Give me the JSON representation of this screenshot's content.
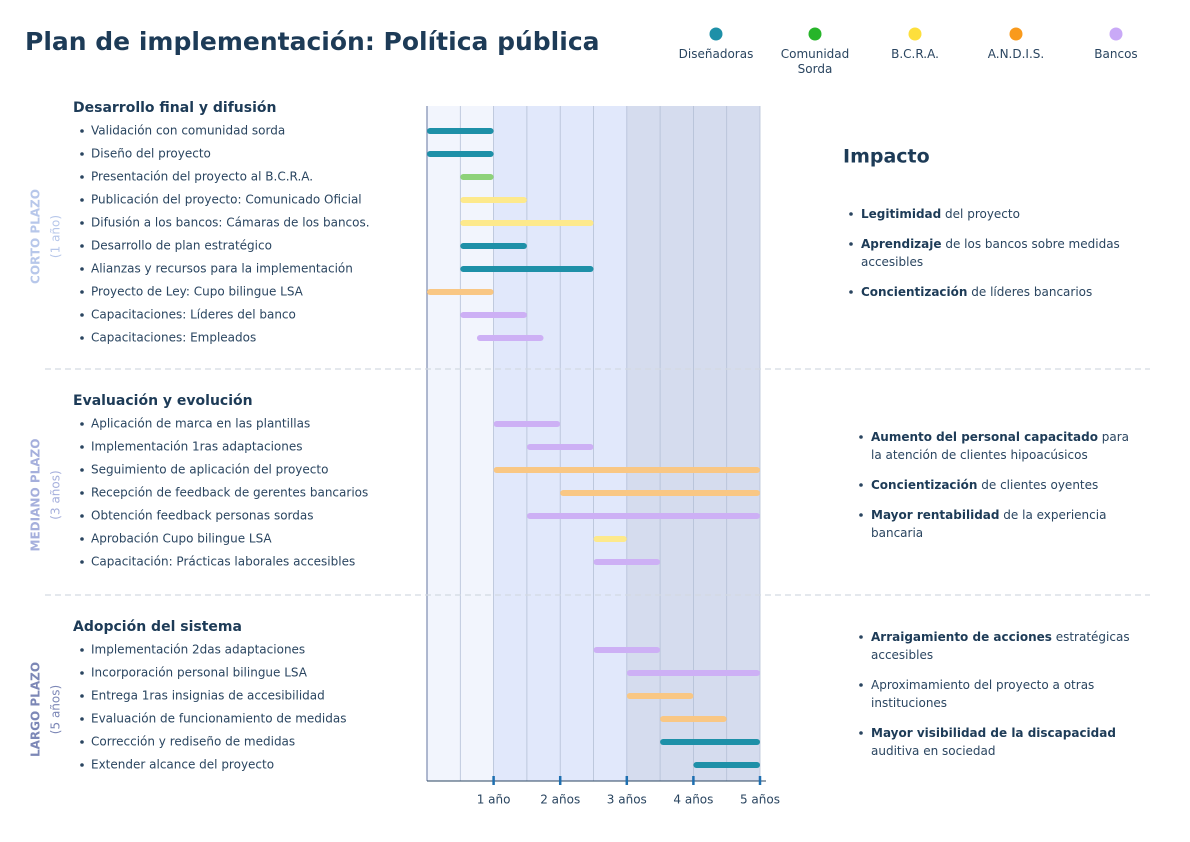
{
  "title": "Plan de implementación: Política pública",
  "impact_title": "Impacto",
  "legend": [
    {
      "name": "Diseñadoras",
      "color": "#1e90a8"
    },
    {
      "name": "Comunidad Sorda",
      "color": "#27b52a"
    },
    {
      "name": "B.C.R.A.",
      "color": "#fddf3c"
    },
    {
      "name": "A.N.D.I.S.",
      "color": "#f99a1c"
    },
    {
      "name": "Bancos",
      "color": "#c9a9f7"
    }
  ],
  "chart_data": {
    "type": "gantt",
    "xlim": [
      0,
      5
    ],
    "xticks": [
      {
        "value": 1,
        "label": "1 año"
      },
      {
        "value": 2,
        "label": "2 años"
      },
      {
        "value": 3,
        "label": "3 años"
      },
      {
        "value": 4,
        "label": "4 años"
      },
      {
        "value": 5,
        "label": "5 años"
      }
    ],
    "xgrid": [
      0.5,
      1,
      1.5,
      2,
      2.5,
      3,
      3.5,
      4,
      4.5,
      5
    ],
    "phases": [
      {
        "label": "CORTO PLAZO",
        "duration": "(1 año)",
        "end": 1,
        "color": "#b7c7ea",
        "shade": "#f2f5fd",
        "heading": "Desarrollo final y difusión",
        "tasks": [
          {
            "name": "Validación con comunidad sorda",
            "start": 0,
            "end": 1,
            "color": "#1e90a8"
          },
          {
            "name": "Diseño del proyecto",
            "start": 0,
            "end": 1,
            "color": "#1e90a8"
          },
          {
            "name": "Presentación del proyecto al B.C.R.A.",
            "start": 0.5,
            "end": 1,
            "color": "#8ed27a"
          },
          {
            "name": "Publicación del proyecto: Comunicado Oficial",
            "start": 0.5,
            "end": 1.5,
            "color": "#fde98c"
          },
          {
            "name": "Difusión a los bancos: Cámaras de los bancos.",
            "start": 0.5,
            "end": 2.5,
            "color": "#fde98c"
          },
          {
            "name": "Desarrollo de plan estratégico",
            "start": 0.5,
            "end": 1.5,
            "color": "#1e90a8"
          },
          {
            "name": "Alianzas y recursos para la implementación",
            "start": 0.5,
            "end": 2.5,
            "color": "#1e90a8"
          },
          {
            "name": "Proyecto de Ley: Cupo bilingue LSA",
            "start": 0,
            "end": 1,
            "color": "#f9c784"
          },
          {
            "name": "Capacitaciones: Líderes del banco",
            "start": 0.5,
            "end": 1.5,
            "color": "#cdb0f5"
          },
          {
            "name": "Capacitaciones: Empleados",
            "start": 0.75,
            "end": 1.75,
            "color": "#cdb0f5"
          }
        ],
        "impact": [
          [
            {
              "t": "Legitimidad",
              "b": true
            },
            {
              "t": " del proyecto"
            }
          ],
          [
            {
              "t": "Aprendizaje",
              "b": true
            },
            {
              "t": " de los bancos sobre medidas accesibles"
            }
          ],
          [
            {
              "t": "Concientización",
              "b": true
            },
            {
              "t": " de líderes bancarios"
            }
          ]
        ]
      },
      {
        "label": "MEDIANO PLAZO",
        "duration": "(3 años)",
        "end": 3,
        "color": "#a5afdc",
        "shade": "#e1e8fb",
        "heading": "Evaluación y evolución",
        "tasks": [
          {
            "name": "Aplicación de marca en las plantillas",
            "start": 1,
            "end": 2,
            "color": "#cdb0f5"
          },
          {
            "name": "Implementación 1ras adaptaciones",
            "start": 1.5,
            "end": 2.5,
            "color": "#cdb0f5"
          },
          {
            "name": "Seguimiento de aplicación del proyecto",
            "start": 1,
            "end": 5,
            "color": "#f9c784"
          },
          {
            "name": "Recepción de feedback de gerentes bancarios",
            "start": 2,
            "end": 5,
            "color": "#f9c784"
          },
          {
            "name": "Obtención feedback personas sordas",
            "start": 1.5,
            "end": 5,
            "color": "#cdb0f5"
          },
          {
            "name": "Aprobación Cupo bilingue LSA",
            "start": 2.5,
            "end": 3,
            "color": "#fde98c"
          },
          {
            "name": "Capacitación: Prácticas laborales accesibles",
            "start": 2.5,
            "end": 3.5,
            "color": "#cdb0f5"
          }
        ],
        "impact": [
          [
            {
              "t": "Aumento del personal capacitado",
              "b": true
            },
            {
              "t": " para la atención de clientes hipoacúsicos"
            }
          ],
          [
            {
              "t": "Concientización",
              "b": true
            },
            {
              "t": " de clientes oyentes"
            }
          ],
          [
            {
              "t": "Mayor rentabilidad",
              "b": true
            },
            {
              "t": " de la experiencia bancaria"
            }
          ]
        ]
      },
      {
        "label": "LARGO PLAZO",
        "duration": "(5 años)",
        "end": 5,
        "color": "#7c87b6",
        "shade": "#d5dcee",
        "heading": "Adopción del sistema",
        "tasks": [
          {
            "name": "Implementación 2das adaptaciones",
            "start": 2.5,
            "end": 3.5,
            "color": "#cdb0f5"
          },
          {
            "name": "Incorporación personal bilingue LSA",
            "start": 3,
            "end": 5,
            "color": "#cdb0f5"
          },
          {
            "name": "Entrega 1ras insignias de accesibilidad",
            "start": 3,
            "end": 4,
            "color": "#f9c784"
          },
          {
            "name": "Evaluación de funcionamiento de medidas",
            "start": 3.5,
            "end": 4.5,
            "color": "#f9c784"
          },
          {
            "name": "Corrección y rediseño de medidas",
            "start": 3.5,
            "end": 5,
            "color": "#1e90a8"
          },
          {
            "name": "Extender alcance del proyecto",
            "start": 4,
            "end": 5,
            "color": "#1e90a8"
          }
        ],
        "impact": [
          [
            {
              "t": "Arraigamiento de acciones",
              "b": true
            },
            {
              "t": " estratégicas accesibles"
            }
          ],
          [
            {
              "t": "Aproximamiento del proyecto a otras instituciones"
            }
          ],
          [
            {
              "t": "Mayor visibilidad de la discapacidad",
              "b": true
            },
            {
              "t": " auditiva en sociedad"
            }
          ]
        ]
      }
    ]
  }
}
